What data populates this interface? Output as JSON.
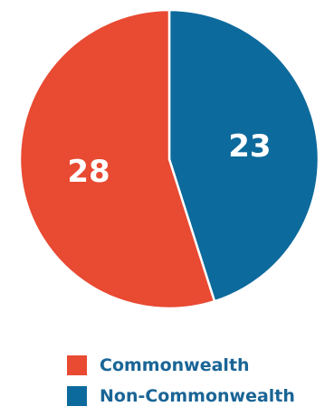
{
  "chart_data": {
    "type": "pie",
    "slices": [
      {
        "label": "Commonwealth",
        "value": 28,
        "color": "#e84a32"
      },
      {
        "label": "Non-Commonwealth",
        "value": 23,
        "color": "#0d6a9c"
      }
    ],
    "data_labels": [
      "28",
      "23"
    ],
    "title": "",
    "legend_position": "bottom"
  },
  "legend": {
    "items": [
      {
        "label": "Commonwealth",
        "color": "#e84a32"
      },
      {
        "label": "Non-Commonwealth",
        "color": "#0d6a9c"
      }
    ]
  }
}
